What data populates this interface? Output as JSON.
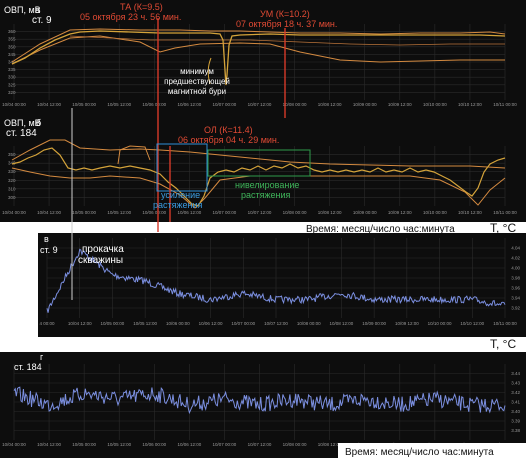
{
  "colors": {
    "panel_bg": "#0d0d0d",
    "grid": "#2b2b2b",
    "tick_text": "#9a9a9a",
    "orp_line": "#d4a33a",
    "envelope": "#d48a40",
    "vertical_marker": "#d63a2a",
    "annotation_red": "#e04a34",
    "annotation_white": "#ffffff",
    "temp_line": "#7b8fe0",
    "box_blue": "#2f8fd8",
    "box_green": "#2f9a4a",
    "text_blue": "#3a9be0",
    "text_green": "#3fb55a",
    "label_black": "#111111"
  },
  "x_ticks": [
    "10/04 00:00",
    "10/04 12:00",
    "10/05 00:00",
    "10/05 12:00",
    "10/06 00:00",
    "10/06 12:00",
    "10/07 00:00",
    "10/07 12:00",
    "10/08 00:00",
    "10/08 12:00",
    "10/09 00:00",
    "10/09 12:00",
    "10/10 00:00",
    "10/10 12:00",
    "10/11 00:00"
  ],
  "x_ticks_temp": [
    "4 00:00",
    "10/04 12:00",
    "10/05 00:00",
    "10/05 12:00",
    "10/06 00:00",
    "10/06 12:00",
    "10/07 00:00",
    "10/07 12:00",
    "10/08 00:00",
    "10/08 12:00",
    "10/09 00:00",
    "10/09 12:00",
    "10/10 00:00",
    "10/10 12:00",
    "10/11 00:00"
  ],
  "panels": {
    "a": {
      "ylabel": "ОВП, мВ",
      "letter": "а",
      "station": "ст. 9",
      "yticks": [
        "360",
        "355",
        "350",
        "345",
        "340",
        "335",
        "330",
        "325",
        "320"
      ]
    },
    "b": {
      "ylabel": "ОВП, мВ",
      "letter": "б",
      "station": "ст. 184",
      "yticks": [
        "350",
        "340",
        "330",
        "320",
        "310",
        "300"
      ]
    },
    "c": {
      "letter": "в",
      "station": "ст. 9",
      "ylabel": "T, °C",
      "yticks": [
        "4.04",
        "4.02",
        "4.00",
        "3.98",
        "3.96",
        "3.94",
        "3.92"
      ]
    },
    "d": {
      "letter": "г",
      "station": "ст. 184",
      "ylabel": "T, °C",
      "yticks": [
        "3.44",
        "3.43",
        "3.42",
        "3.41",
        "3.40",
        "3.39",
        "3.38"
      ]
    }
  },
  "annotations": {
    "ta_line1": "ТА (К=9.5)",
    "ta_line2": "05 октября 23 ч. 56 мин.",
    "um_line1": "УМ (К=10.2)",
    "um_line2": "07 октября 18 ч. 37 мин.",
    "min_line1": "минимум",
    "min_line2": "предшествующей",
    "min_line3": "магнитной бури",
    "ol_line1": "ОЛ (К=11.4)",
    "ol_line2": "06 октября 04 ч. 29 мин.",
    "usilenie_line1": "усиление",
    "usilenie_line2": "растяжения",
    "nivel_line1": "нивелирование",
    "nivel_line2": "растяжения",
    "prokachka_line1": "прокачка",
    "prokachka_line2": "скважины",
    "time_label_1": "Время: месяц/число час:минута",
    "time_label_2": "Время: месяц/число час:минута"
  },
  "chart_data": [
    {
      "type": "line",
      "panel": "а",
      "title": "ст. 9",
      "ylabel": "ОВП, мВ",
      "xlabel": "",
      "ylim": [
        320,
        362
      ],
      "x": [
        "10/04 00:00",
        "10/04 12:00",
        "10/05 00:00",
        "10/05 12:00",
        "10/06 00:00",
        "10/06 12:00",
        "10/07 00:00",
        "10/07 12:00",
        "10/08 00:00",
        "10/08 12:00",
        "10/09 00:00",
        "10/09 12:00",
        "10/10 00:00",
        "10/10 12:00",
        "10/11 00:00"
      ],
      "series": [
        {
          "values": [
            342,
            356,
            357,
            357,
            356,
            357,
            356,
            357,
            357,
            357,
            357,
            357,
            357,
            356,
            355
          ]
        }
      ],
      "events": [
        {
          "label": "ТА (К=9.5)",
          "time": "05 октября 23 ч. 56 мин."
        },
        {
          "label": "УМ (К=10.2)",
          "time": "07 октября 18 ч. 37 мин."
        }
      ]
    },
    {
      "type": "line",
      "panel": "б",
      "title": "ст. 184",
      "ylabel": "ОВП, мВ",
      "xlabel": "Время: месяц/число час:минута",
      "ylim": [
        295,
        355
      ],
      "x": [
        "10/04 00:00",
        "10/04 12:00",
        "10/05 00:00",
        "10/05 12:00",
        "10/06 00:00",
        "10/06 12:00",
        "10/07 00:00",
        "10/07 12:00",
        "10/08 00:00",
        "10/08 12:00",
        "10/09 00:00",
        "10/09 12:00",
        "10/10 00:00",
        "10/10 12:00",
        "10/11 00:00"
      ],
      "series": [
        {
          "values": [
            330,
            336,
            331,
            333,
            325,
            313,
            330,
            331,
            331,
            332,
            331,
            332,
            330,
            315,
            327
          ]
        }
      ],
      "events": [
        {
          "label": "ОЛ (К=11.4)",
          "time": "06 октября 04 ч. 29 мин."
        }
      ]
    },
    {
      "type": "line",
      "panel": "в",
      "title": "ст. 9",
      "ylabel": "T, °C",
      "xlabel": "",
      "ylim": [
        3.92,
        4.05
      ],
      "x": [
        "10/04 00:00",
        "10/04 12:00",
        "10/05 00:00",
        "10/05 12:00",
        "10/06 00:00",
        "10/06 12:00",
        "10/07 00:00",
        "10/07 12:00",
        "10/08 00:00",
        "10/08 12:00",
        "10/09 00:00",
        "10/09 12:00",
        "10/10 00:00",
        "10/10 12:00",
        "10/11 00:00"
      ],
      "series": [
        {
          "values": [
            3.93,
            4.03,
            3.99,
            3.98,
            3.96,
            3.95,
            3.96,
            3.95,
            3.95,
            3.96,
            3.95,
            3.95,
            3.95,
            3.95,
            3.94
          ]
        }
      ]
    },
    {
      "type": "line",
      "panel": "г",
      "title": "ст. 184",
      "ylabel": "T, °C",
      "xlabel": "Время: месяц/число час:минута",
      "ylim": [
        3.38,
        3.445
      ],
      "x": [
        "10/04 00:00",
        "10/04 12:00",
        "10/05 00:00",
        "10/05 12:00",
        "10/06 00:00",
        "10/06 12:00",
        "10/07 00:00",
        "10/07 12:00",
        "10/08 00:00",
        "10/08 12:00",
        "10/09 00:00",
        "10/09 12:00",
        "10/10 00:00",
        "10/10 12:00",
        "10/11 00:00"
      ],
      "series": [
        {
          "values": [
            3.42,
            3.41,
            3.42,
            3.415,
            3.42,
            3.41,
            3.415,
            3.41,
            3.415,
            3.41,
            3.415,
            3.41,
            3.415,
            3.41,
            3.41
          ]
        }
      ]
    }
  ]
}
